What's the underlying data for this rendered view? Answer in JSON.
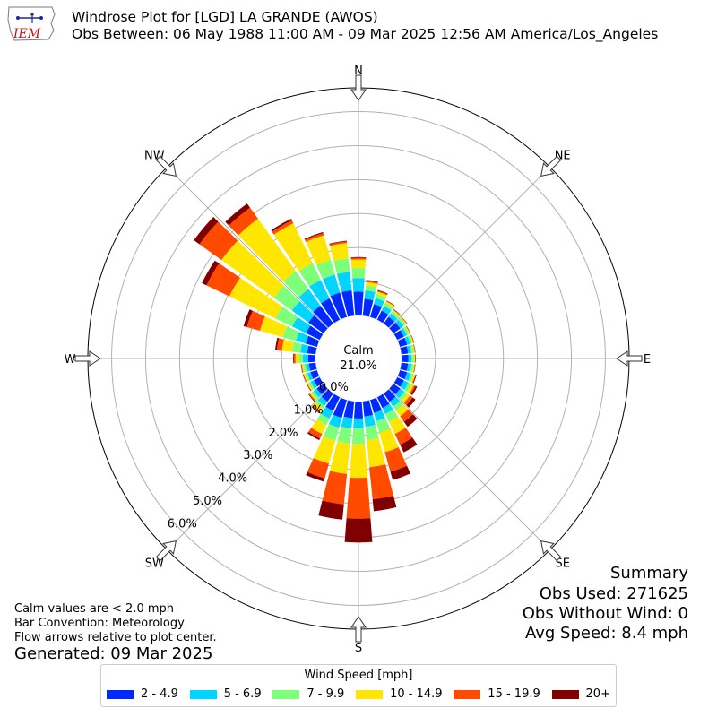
{
  "header": {
    "logo_text": "IEM",
    "title_line1": "Windrose Plot for [LGD] LA GRANDE (AWOS)",
    "title_line2": "Obs Between: 06 May 1988 11:00 AM - 09 Mar 2025 12:56 AM America/Los_Angeles"
  },
  "summary": {
    "heading": "Summary",
    "obs_used": "Obs Used: 271625",
    "obs_without_wind": "Obs Without Wind: 0",
    "avg_speed": "Avg Speed: 8.4 mph"
  },
  "notes": {
    "calm_note": "Calm values are < 2.0 mph",
    "bar_convention": "Bar Convention: Meteorology",
    "flow_arrows": "Flow arrows relative to plot center.",
    "generated": "Generated: 09 Mar 2025"
  },
  "chart_data": {
    "type": "windrose",
    "calm_label": "Calm",
    "calm_percent_label": "21.0%",
    "calm_percent": 21.0,
    "radial_tick_labels": [
      "0.0%",
      "1.0%",
      "2.0%",
      "3.0%",
      "4.0%",
      "5.0%",
      "6.0%"
    ],
    "radial_ticks": [
      0,
      1,
      2,
      3,
      4,
      5,
      6
    ],
    "radial_max": 6.7,
    "compass_labels": [
      "N",
      "NE",
      "E",
      "SE",
      "S",
      "SW",
      "W",
      "NW"
    ],
    "direction_count": 36,
    "legend": {
      "title": "Wind Speed [mph]",
      "bins": [
        "2 - 4.9",
        "5 - 6.9",
        "7 - 9.9",
        "10 - 14.9",
        "15 - 19.9",
        "20+"
      ],
      "colors": [
        "#0029ff",
        "#00d5ff",
        "#7dff7a",
        "#ffe600",
        "#ff4a00",
        "#800000"
      ]
    },
    "directions_deg": [
      0,
      10,
      20,
      30,
      40,
      50,
      60,
      70,
      80,
      90,
      100,
      110,
      120,
      130,
      140,
      150,
      160,
      170,
      180,
      190,
      200,
      210,
      220,
      230,
      240,
      250,
      260,
      270,
      280,
      290,
      300,
      310,
      320,
      330,
      340,
      350
    ],
    "series": [
      {
        "name": "2 - 4.9",
        "values": [
          0.7,
          0.5,
          0.4,
          0.3,
          0.25,
          0.25,
          0.22,
          0.22,
          0.2,
          0.2,
          0.2,
          0.22,
          0.22,
          0.25,
          0.3,
          0.35,
          0.4,
          0.45,
          0.5,
          0.5,
          0.55,
          0.45,
          0.3,
          0.25,
          0.2,
          0.2,
          0.2,
          0.22,
          0.25,
          0.35,
          0.45,
          0.55,
          0.65,
          0.7,
          0.75,
          0.75
        ]
      },
      {
        "name": "5 - 6.9",
        "values": [
          0.4,
          0.25,
          0.18,
          0.15,
          0.12,
          0.12,
          0.1,
          0.1,
          0.1,
          0.1,
          0.1,
          0.12,
          0.15,
          0.15,
          0.18,
          0.2,
          0.25,
          0.3,
          0.3,
          0.3,
          0.3,
          0.25,
          0.15,
          0.12,
          0.1,
          0.1,
          0.1,
          0.15,
          0.2,
          0.3,
          0.45,
          0.6,
          0.6,
          0.6,
          0.55,
          0.55
        ]
      },
      {
        "name": "7 - 9.9",
        "values": [
          0.3,
          0.15,
          0.12,
          0.1,
          0.08,
          0.08,
          0.07,
          0.07,
          0.07,
          0.07,
          0.07,
          0.08,
          0.1,
          0.1,
          0.15,
          0.25,
          0.35,
          0.4,
          0.45,
          0.45,
          0.4,
          0.2,
          0.1,
          0.08,
          0.07,
          0.07,
          0.07,
          0.12,
          0.25,
          0.4,
          0.55,
          0.65,
          0.65,
          0.55,
          0.45,
          0.4
        ]
      },
      {
        "name": "10 - 14.9",
        "values": [
          0.25,
          0.1,
          0.08,
          0.05,
          0.04,
          0.03,
          0.03,
          0.03,
          0.03,
          0.03,
          0.03,
          0.05,
          0.08,
          0.1,
          0.2,
          0.4,
          0.6,
          0.8,
          1.0,
          0.9,
          0.7,
          0.3,
          0.1,
          0.05,
          0.04,
          0.04,
          0.04,
          0.1,
          0.3,
          0.7,
          1.5,
          1.9,
          1.9,
          1.3,
          0.75,
          0.45
        ]
      },
      {
        "name": "15 - 19.9",
        "values": [
          0.05,
          0.04,
          0.03,
          0.02,
          0.02,
          0.01,
          0.01,
          0.01,
          0.01,
          0.01,
          0.01,
          0.02,
          0.05,
          0.1,
          0.2,
          0.35,
          0.6,
          0.95,
          1.2,
          0.9,
          0.45,
          0.15,
          0.05,
          0.03,
          0.02,
          0.02,
          0.02,
          0.05,
          0.15,
          0.4,
          0.75,
          0.8,
          0.4,
          0.1,
          0.07,
          0.05
        ]
      },
      {
        "name": "20+",
        "values": [
          0.02,
          0.02,
          0.02,
          0.01,
          0.01,
          0.01,
          0.01,
          0.01,
          0.01,
          0.01,
          0.01,
          0.02,
          0.05,
          0.1,
          0.18,
          0.25,
          0.25,
          0.35,
          0.7,
          0.45,
          0.1,
          0.05,
          0.02,
          0.02,
          0.01,
          0.01,
          0.01,
          0.02,
          0.05,
          0.1,
          0.15,
          0.2,
          0.15,
          0.05,
          0.03,
          0.02
        ]
      }
    ]
  }
}
